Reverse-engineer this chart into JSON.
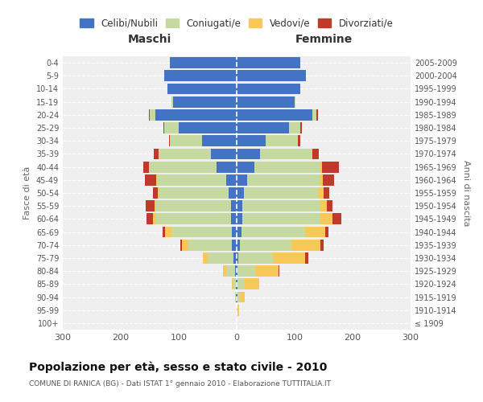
{
  "age_groups": [
    "100+",
    "95-99",
    "90-94",
    "85-89",
    "80-84",
    "75-79",
    "70-74",
    "65-69",
    "60-64",
    "55-59",
    "50-54",
    "45-49",
    "40-44",
    "35-39",
    "30-34",
    "25-29",
    "20-24",
    "15-19",
    "10-14",
    "5-9",
    "0-4"
  ],
  "birth_years": [
    "≤ 1909",
    "1910-1914",
    "1915-1919",
    "1920-1924",
    "1925-1929",
    "1930-1934",
    "1935-1939",
    "1940-1944",
    "1945-1949",
    "1950-1954",
    "1955-1959",
    "1960-1964",
    "1965-1969",
    "1970-1974",
    "1975-1979",
    "1980-1984",
    "1985-1989",
    "1990-1994",
    "1995-1999",
    "2000-2004",
    "2005-2009"
  ],
  "males": {
    "celibe": [
      0,
      0,
      1,
      2,
      3,
      5,
      8,
      8,
      10,
      10,
      14,
      18,
      35,
      45,
      60,
      100,
      140,
      110,
      120,
      125,
      115
    ],
    "coniugato": [
      0,
      0,
      2,
      5,
      15,
      45,
      75,
      105,
      130,
      130,
      120,
      120,
      115,
      90,
      55,
      25,
      10,
      2,
      0,
      0,
      0
    ],
    "vedovo": [
      0,
      0,
      0,
      2,
      5,
      8,
      12,
      10,
      5,
      2,
      2,
      1,
      1,
      0,
      0,
      0,
      0,
      0,
      0,
      0,
      0
    ],
    "divorziato": [
      0,
      0,
      0,
      0,
      1,
      1,
      2,
      5,
      10,
      15,
      8,
      20,
      10,
      8,
      2,
      2,
      1,
      0,
      0,
      0,
      0
    ]
  },
  "females": {
    "nubile": [
      0,
      0,
      1,
      2,
      2,
      3,
      5,
      8,
      10,
      10,
      12,
      18,
      30,
      40,
      50,
      90,
      130,
      100,
      110,
      120,
      110
    ],
    "coniugata": [
      0,
      2,
      5,
      12,
      30,
      60,
      90,
      110,
      135,
      135,
      130,
      125,
      115,
      90,
      55,
      20,
      8,
      2,
      0,
      0,
      0
    ],
    "vedova": [
      0,
      2,
      8,
      25,
      40,
      55,
      50,
      35,
      20,
      10,
      8,
      5,
      2,
      1,
      0,
      0,
      0,
      0,
      0,
      0,
      0
    ],
    "divorziata": [
      0,
      0,
      0,
      0,
      2,
      5,
      5,
      5,
      15,
      10,
      10,
      20,
      30,
      10,
      5,
      3,
      2,
      0,
      0,
      0,
      0
    ]
  },
  "colors": {
    "celibe": "#4472C4",
    "coniugato": "#C6D9A0",
    "vedovo": "#FAC858",
    "divorziato": "#C0392B"
  },
  "xlim": 300,
  "title": "Popolazione per età, sesso e stato civile - 2010",
  "subtitle": "COMUNE DI RANICA (BG) - Dati ISTAT 1° gennaio 2010 - Elaborazione TUTTITALIA.IT",
  "xlabel_left": "Maschi",
  "xlabel_right": "Femmine",
  "ylabel_left": "Fasce di età",
  "ylabel_right": "Anni di nascita",
  "legend_labels": [
    "Celibi/Nubili",
    "Coniugati/e",
    "Vedovi/e",
    "Divorziati/e"
  ],
  "bg_color": "#FFFFFF",
  "plot_bg": "#EFEFEF"
}
